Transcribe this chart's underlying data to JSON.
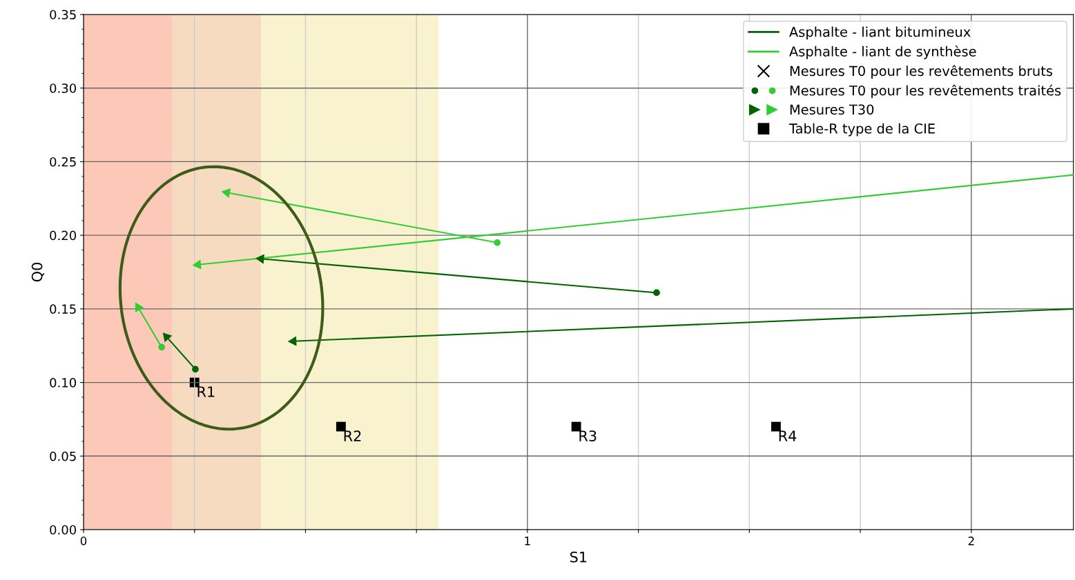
{
  "chart_data": {
    "type": "scatter",
    "xlabel": "S1",
    "ylabel": "Q0",
    "xlim": [
      0,
      2.23
    ],
    "ylim": [
      0,
      0.35
    ],
    "xticks": [
      0,
      {
        "value": 0.25,
        "label": null
      },
      {
        "value": 0.5,
        "label": null
      },
      {
        "value": 0.75,
        "label": null
      },
      1,
      {
        "value": 1.25,
        "label": null
      },
      {
        "value": 1.5,
        "label": null
      },
      {
        "value": 1.75,
        "label": null
      },
      2
    ],
    "yticks": [
      {
        "value": 0,
        "label": "0.00"
      },
      {
        "value": 0.05,
        "label": "0.05"
      },
      {
        "value": 0.1,
        "label": "0.10"
      },
      {
        "value": 0.15,
        "label": "0.15"
      },
      {
        "value": 0.2,
        "label": "0.20"
      },
      {
        "value": 0.25,
        "label": "0.25"
      },
      {
        "value": 0.3,
        "label": "0.30"
      },
      {
        "value": 0.35,
        "label": "0.35"
      }
    ],
    "grid": true,
    "legend": "top right",
    "bands": [
      {
        "axis": "x",
        "from": 0,
        "to": 0.2,
        "color": "#f99371"
      },
      {
        "axis": "x",
        "from": 0.2,
        "to": 0.4,
        "color": "#efb781"
      },
      {
        "axis": "x",
        "from": 0.4,
        "to": 0.8,
        "color": "#f1e59f"
      }
    ],
    "series": [
      {
        "name": "Asphalte - liant bitumineux",
        "type": "line",
        "color": "#006400",
        "marker": "none",
        "x": [
          1.291,
          0.4,
          null,
          2.23,
          0.473,
          null,
          0.252,
          0.187
        ],
        "values": [
          0.161,
          0.184,
          null,
          0.15,
          0.128,
          null,
          0.109,
          0.131
        ]
      },
      {
        "name": "Asphalte - liant de synthèse",
        "type": "line",
        "color": "#32cd32",
        "marker": "none",
        "x": [
          0.932,
          0.323,
          null,
          2.23,
          0.258,
          null,
          0.176,
          0.123
        ],
        "values": [
          0.195,
          0.229,
          null,
          0.241,
          0.18,
          null,
          0.124,
          0.151
        ]
      },
      {
        "name": "Mesures T0 pour les revêtements bruts",
        "color": "#000000",
        "marker": "cross"
      },
      {
        "name": "Mesures T0 pour les revêtements traités",
        "marker": "circle",
        "x": [
          1.291,
          0.252,
          0.932,
          0.176
        ],
        "values": [
          0.161,
          0.109,
          0.195,
          0.124
        ],
        "colors": [
          "#006400",
          "#006400",
          "#32cd32",
          "#32cd32"
        ]
      },
      {
        "name": "Mesures T30",
        "marker": "triangle",
        "x": [
          0.4,
          0.473,
          0.187,
          0.323,
          0.258,
          0.123
        ],
        "values": [
          0.184,
          0.128,
          0.131,
          0.229,
          0.18,
          0.151
        ],
        "colors": [
          "#006400",
          "#006400",
          "#006400",
          "#32cd32",
          "#32cd32",
          "#32cd32"
        ]
      },
      {
        "name": "Table-R type de la CIE",
        "color": "#000000",
        "marker": "square",
        "x": [
          0.25,
          0.58,
          1.11,
          1.56
        ],
        "values": [
          0.1,
          0.07,
          0.07,
          0.07
        ],
        "value_labels": [
          "R1",
          "R2",
          "R3",
          "R4"
        ]
      }
    ]
  }
}
